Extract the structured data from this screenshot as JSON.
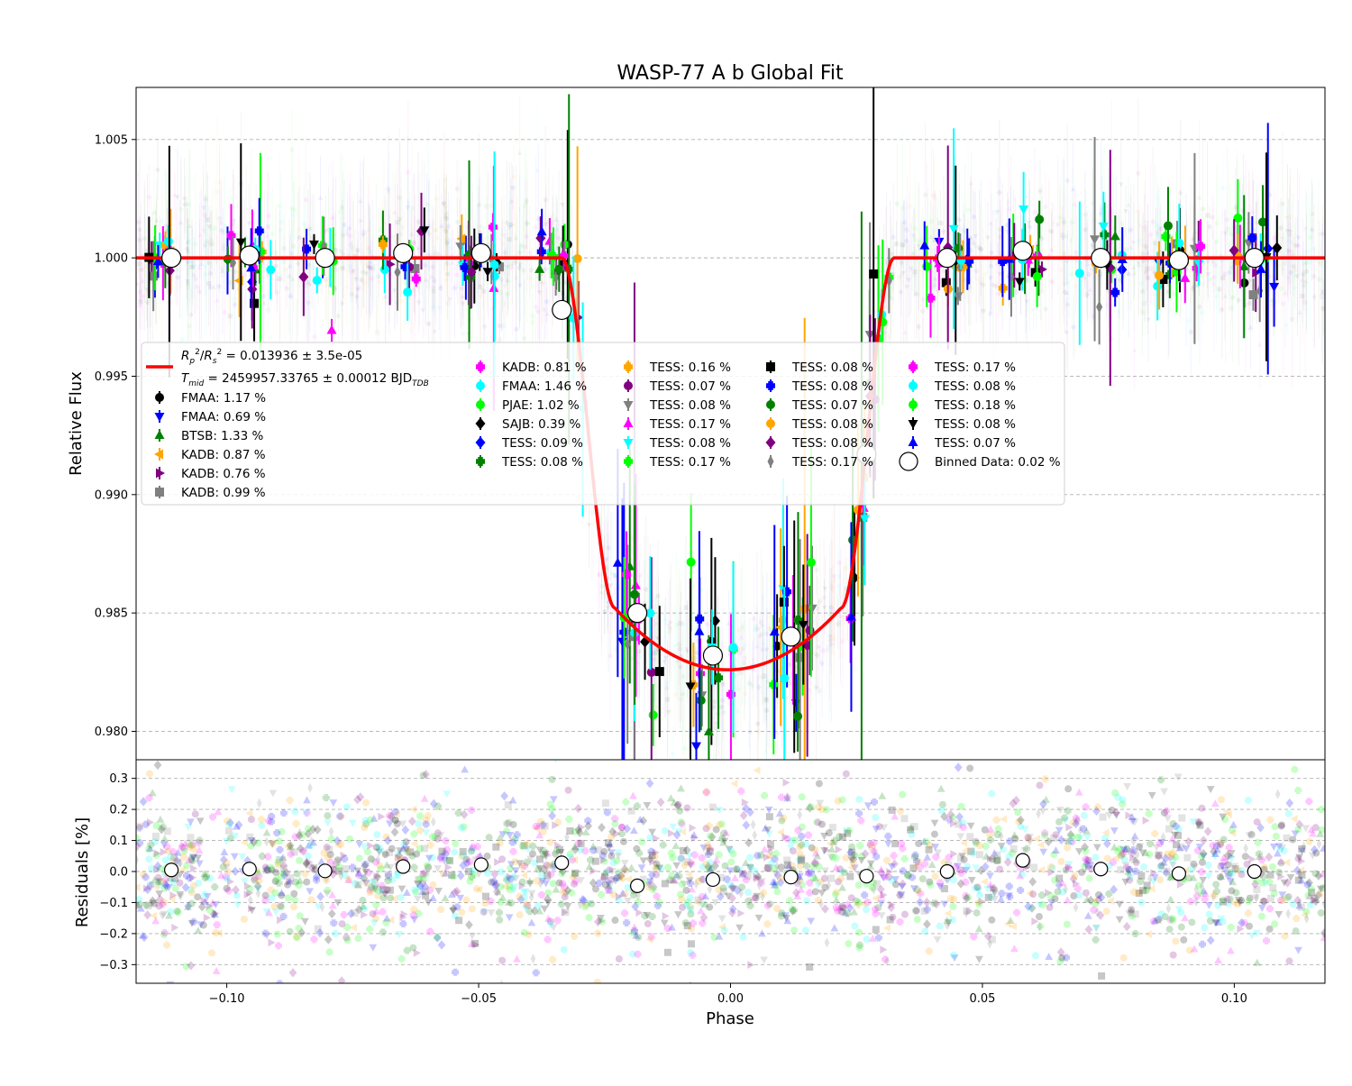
{
  "chart_data": [
    {
      "type": "scatter",
      "panel": "main",
      "title": "WASP-77 A b Global Fit",
      "xlabel": "",
      "ylabel": "Relative Flux",
      "xlim": [
        -0.118,
        0.118
      ],
      "ylim": [
        0.9788,
        1.0072
      ],
      "xticks": [
        -0.1,
        -0.05,
        0.0,
        0.05,
        0.1
      ],
      "xtick_labels": [
        "−0.10",
        "−0.05",
        "0.00",
        "0.05",
        "0.10"
      ],
      "yticks": [
        0.98,
        0.985,
        0.99,
        0.995,
        1.0,
        1.005
      ],
      "ytick_labels": [
        "0.980",
        "0.985",
        "0.990",
        "0.995",
        "1.000",
        "1.005"
      ],
      "grid": "horizontal dashed",
      "legend_placement": "center-left",
      "model": {
        "name_line1": "R_p^2/R_s^2 = 0.013936 ± 3.5e-05",
        "name_line2": "T_mid = 2459957.33765 ± 0.00012 BJD_TDB",
        "color": "#ff0000",
        "depth": 0.013936,
        "bottom_flux": 0.9826,
        "ingress_start": -0.0335,
        "egress_end": 0.0325
      },
      "binned_data": {
        "name": "Binned Data: 0.02 %",
        "x": [
          -0.111,
          -0.0955,
          -0.0805,
          -0.065,
          -0.0495,
          -0.0335,
          -0.0185,
          -0.0035,
          0.012,
          0.027,
          0.043,
          0.058,
          0.0735,
          0.089,
          0.104
        ],
        "y": [
          1.0,
          1.0001,
          1.0,
          1.0002,
          1.0002,
          0.9978,
          0.985,
          0.9832,
          0.984,
          0.9917,
          1.0,
          1.0003,
          1.0,
          0.9999,
          1.0
        ]
      },
      "series": [
        {
          "name": "FMAA: 1.17 %",
          "color": "#000000",
          "marker": "circle"
        },
        {
          "name": "FMAA: 0.69 %",
          "color": "#0000ff",
          "marker": "triangle-down"
        },
        {
          "name": "BTSB: 1.33 %",
          "color": "#008000",
          "marker": "triangle-up"
        },
        {
          "name": "KADB: 0.87 %",
          "color": "#ffa500",
          "marker": "triangle-left"
        },
        {
          "name": "KADB: 0.76 %",
          "color": "#800080",
          "marker": "triangle-right"
        },
        {
          "name": "KADB: 0.99 %",
          "color": "#808080",
          "marker": "square"
        },
        {
          "name": "KADB: 0.81 %",
          "color": "#ff00ff",
          "marker": "plus"
        },
        {
          "name": "FMAA: 1.46 %",
          "color": "#00ffff",
          "marker": "hexagon"
        },
        {
          "name": "PJAE: 1.02 %",
          "color": "#00ff00",
          "marker": "hexagon"
        },
        {
          "name": "SAJB: 0.39 %",
          "color": "#000000",
          "marker": "diamond"
        },
        {
          "name": "TESS: 0.09 %",
          "color": "#0000ff",
          "marker": "diamond"
        },
        {
          "name": "TESS: 0.08 %",
          "color": "#008000",
          "marker": "plus"
        },
        {
          "name": "TESS: 0.16 %",
          "color": "#ffa500",
          "marker": "plus-filled"
        },
        {
          "name": "TESS: 0.07 %",
          "color": "#800080",
          "marker": "circle"
        },
        {
          "name": "TESS: 0.08 %",
          "color": "#808080",
          "marker": "triangle-down"
        },
        {
          "name": "TESS: 0.17 %",
          "color": "#ff00ff",
          "marker": "triangle-up"
        },
        {
          "name": "TESS: 0.08 %",
          "color": "#00ffff",
          "marker": "tri"
        },
        {
          "name": "TESS: 0.17 %",
          "color": "#00ff00",
          "marker": "plus"
        },
        {
          "name": "TESS: 0.08 %",
          "color": "#000000",
          "marker": "square"
        },
        {
          "name": "TESS: 0.08 %",
          "color": "#0000ff",
          "marker": "plus"
        },
        {
          "name": "TESS: 0.07 %",
          "color": "#008000",
          "marker": "hexagon"
        },
        {
          "name": "TESS: 0.08 %",
          "color": "#ffa500",
          "marker": "hexagon"
        },
        {
          "name": "TESS: 0.08 %",
          "color": "#800080",
          "marker": "diamond"
        },
        {
          "name": "TESS: 0.17 %",
          "color": "#808080",
          "marker": "thin-diamond"
        },
        {
          "name": "TESS: 0.17 %",
          "color": "#ff00ff",
          "marker": "plus"
        },
        {
          "name": "TESS: 0.08 %",
          "color": "#00ffff",
          "marker": "hexagon"
        },
        {
          "name": "TESS: 0.18 %",
          "color": "#00ff00",
          "marker": "hexagon"
        },
        {
          "name": "TESS: 0.08 %",
          "color": "#000000",
          "marker": "triangle-down"
        },
        {
          "name": "TESS: 0.07 %",
          "color": "#0000ff",
          "marker": "triangle-up"
        }
      ]
    },
    {
      "type": "scatter",
      "panel": "residuals",
      "title": "",
      "xlabel": "Phase",
      "ylabel": "Residuals [%]",
      "xlim": [
        -0.118,
        0.118
      ],
      "ylim": [
        -0.36,
        0.36
      ],
      "xticks": [
        -0.1,
        -0.05,
        0.0,
        0.05,
        0.1
      ],
      "xtick_labels": [
        "−0.10",
        "−0.05",
        "0.00",
        "0.05",
        "0.10"
      ],
      "yticks": [
        -0.3,
        -0.2,
        -0.1,
        0.0,
        0.1,
        0.2,
        0.3
      ],
      "ytick_labels": [
        "−0.3",
        "−0.2",
        "−0.1",
        "0.0",
        "0.1",
        "0.2",
        "0.3"
      ],
      "grid": "horizontal dashed",
      "binned_residuals": {
        "x": [
          -0.111,
          -0.0955,
          -0.0805,
          -0.065,
          -0.0495,
          -0.0335,
          -0.0185,
          -0.0035,
          0.012,
          0.027,
          0.043,
          0.058,
          0.0735,
          0.089,
          0.104
        ],
        "y": [
          0.005,
          0.008,
          0.002,
          0.016,
          0.022,
          0.028,
          -0.046,
          -0.026,
          -0.018,
          -0.015,
          0.0,
          0.036,
          0.008,
          -0.007,
          0.0
        ]
      },
      "scatter_spread": 0.12
    }
  ]
}
